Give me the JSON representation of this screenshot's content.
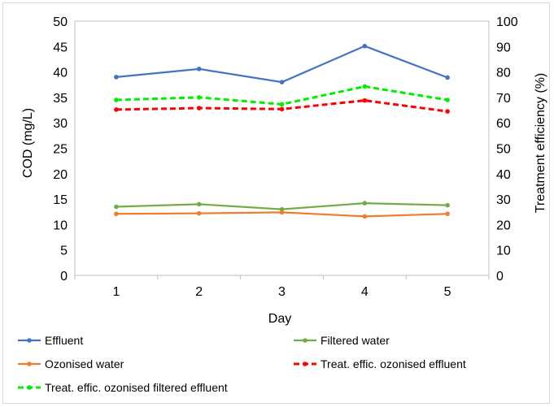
{
  "chart_data": {
    "type": "line",
    "categories": [
      "1",
      "2",
      "3",
      "4",
      "5"
    ],
    "xlabel": "Day",
    "ylabel": "COD (mg/L)",
    "y2label": "Treatment efficiency (%)",
    "ylim": [
      0,
      50
    ],
    "y2lim": [
      0,
      100
    ],
    "yticks": [
      "0",
      "5",
      "10",
      "15",
      "20",
      "25",
      "30",
      "35",
      "40",
      "45",
      "50"
    ],
    "y2ticks": [
      "0",
      "10",
      "20",
      "30",
      "40",
      "50",
      "60",
      "70",
      "80",
      "90",
      "100"
    ],
    "grid": false,
    "legend_position": "bottom",
    "series": [
      {
        "name": "Effluent",
        "axis": "left",
        "color": "#4472c4",
        "dash": false,
        "values": [
          39.0,
          40.6,
          38.0,
          45.1,
          38.9
        ]
      },
      {
        "name": "Filtered water",
        "axis": "left",
        "color": "#70ad47",
        "dash": false,
        "values": [
          13.5,
          14.0,
          13.0,
          14.2,
          13.8
        ]
      },
      {
        "name": "Ozonised water",
        "axis": "left",
        "color": "#ed7d31",
        "dash": false,
        "values": [
          12.1,
          12.2,
          12.4,
          11.6,
          12.1
        ]
      },
      {
        "name": "Treat. effic. ozonised effluent",
        "axis": "right",
        "color": "#ff0000",
        "dash": true,
        "values": [
          65.2,
          65.8,
          65.4,
          68.8,
          64.5
        ]
      },
      {
        "name": "Treat. effic. ozonised filtered effluent",
        "axis": "right",
        "color": "#00ee00",
        "dash": true,
        "values": [
          69.0,
          70.0,
          67.3,
          74.3,
          69.0
        ]
      }
    ]
  }
}
